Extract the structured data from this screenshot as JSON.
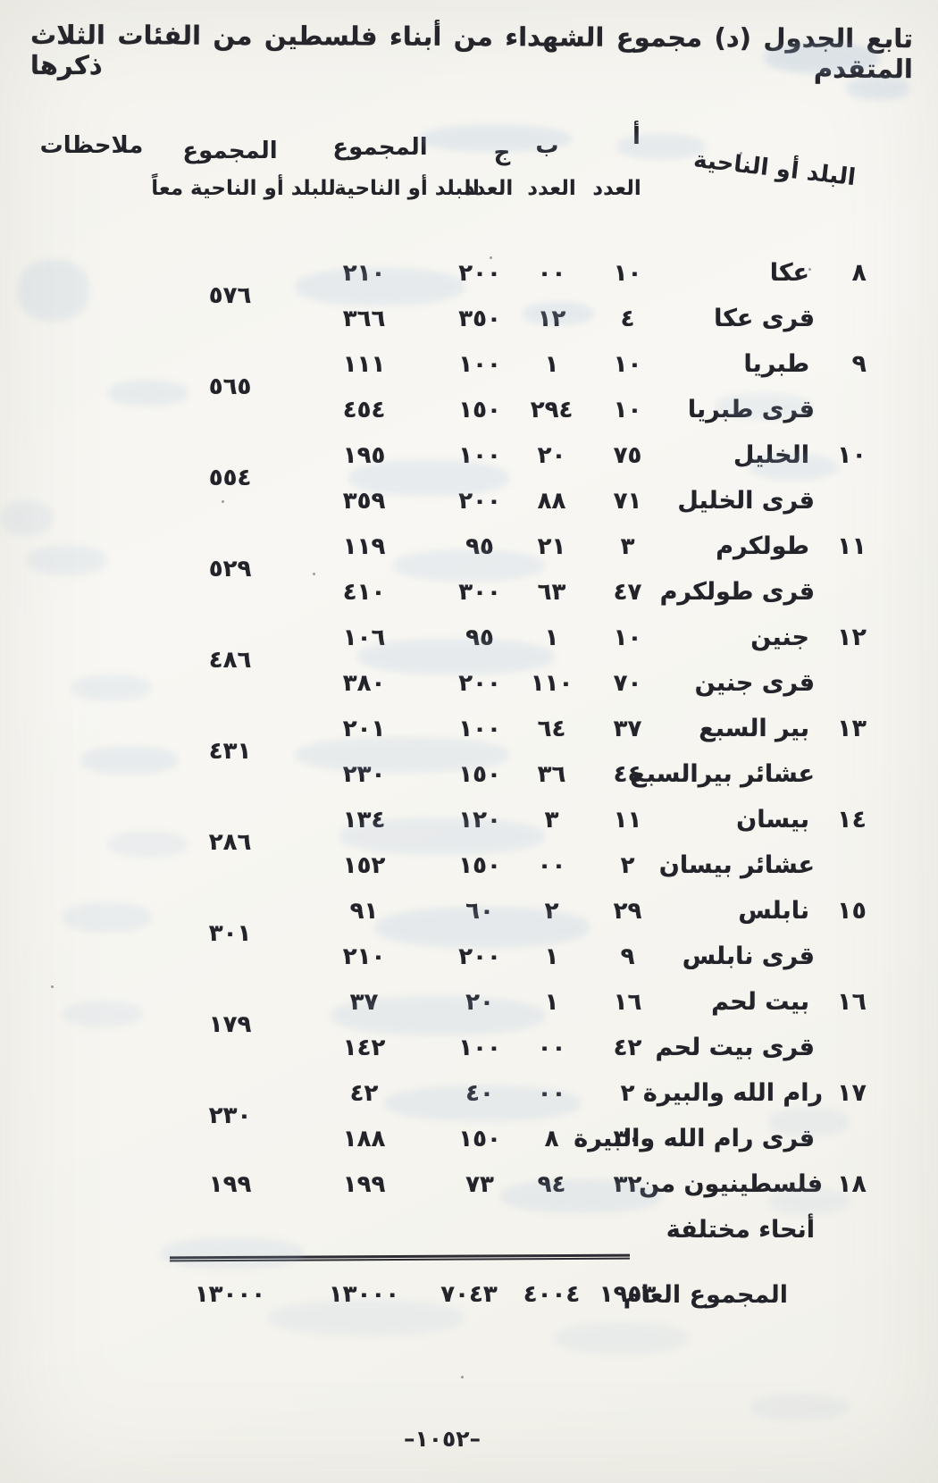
{
  "page": {
    "title": "تابع الجدول (د) مجموع الشهداء من أبناء فلسطين من الفئات الثلاث المتقدم ذكرها",
    "page_number": "–١٠٥٢–"
  },
  "colors": {
    "ink": "#23232a",
    "paper": "#f5f4ef",
    "bleed_through": "#9db8d6"
  },
  "table": {
    "headers": {
      "place": "البلد أو الناحية",
      "col_a": "أ",
      "col_b": "ب",
      "col_c": "ج",
      "count": "العدد",
      "total_place_title": "المجموع",
      "total_place_sub": "للبلد أو الناحية",
      "total_combined_title": "المجموع",
      "total_combined_sub": "للبلد أو الناحية معاً",
      "notes": "ملاحظات"
    },
    "groups": [
      {
        "num": "٨",
        "combined": "٥٧٦",
        "notes": "",
        "rows": [
          {
            "name": "عكا",
            "a": "١٠",
            "b": "٠٠",
            "c": "٢٠٠",
            "t": "٢١٠"
          },
          {
            "name": "قرى عكا",
            "a": "٤",
            "b": "١٢",
            "c": "٣٥٠",
            "t": "٣٦٦"
          }
        ]
      },
      {
        "num": "٩",
        "combined": "٥٦٥",
        "notes": "",
        "rows": [
          {
            "name": "طبريا",
            "a": "١٠",
            "b": "١",
            "c": "١٠٠",
            "t": "١١١"
          },
          {
            "name": "قرى طبريا",
            "a": "١٠",
            "b": "٢٩٤",
            "c": "١٥٠",
            "t": "٤٥٤"
          }
        ]
      },
      {
        "num": "١٠",
        "combined": "٥٥٤",
        "notes": "",
        "rows": [
          {
            "name": "الخليل",
            "a": "٧٥",
            "b": "٢٠",
            "c": "١٠٠",
            "t": "١٩٥"
          },
          {
            "name": "قرى الخليل",
            "a": "٧١",
            "b": "٨٨",
            "c": "٢٠٠",
            "t": "٣٥٩"
          }
        ]
      },
      {
        "num": "١١",
        "combined": "٥٢٩",
        "notes": "",
        "rows": [
          {
            "name": "طولكرم",
            "a": "٣",
            "b": "٢١",
            "c": "٩٥",
            "t": "١١٩"
          },
          {
            "name": "قرى طولكرم",
            "a": "٤٧",
            "b": "٦٣",
            "c": "٣٠٠",
            "t": "٤١٠"
          }
        ]
      },
      {
        "num": "١٢",
        "combined": "٤٨٦",
        "notes": "",
        "rows": [
          {
            "name": "جنين",
            "a": "١٠",
            "b": "١",
            "c": "٩٥",
            "t": "١٠٦"
          },
          {
            "name": "قرى جنين",
            "a": "٧٠",
            "b": "١١٠",
            "c": "٢٠٠",
            "t": "٣٨٠"
          }
        ]
      },
      {
        "num": "١٣",
        "combined": "٤٣١",
        "notes": "",
        "rows": [
          {
            "name": "بير السبع",
            "a": "٣٧",
            "b": "٦٤",
            "c": "١٠٠",
            "t": "٢٠١"
          },
          {
            "name": "عشائر بيرالسبع",
            "a": "٤٤",
            "b": "٣٦",
            "c": "١٥٠",
            "t": "٢٣٠"
          }
        ]
      },
      {
        "num": "١٤",
        "combined": "٢٨٦",
        "notes": "",
        "rows": [
          {
            "name": "بيسان",
            "a": "١١",
            "b": "٣",
            "c": "١٢٠",
            "t": "١٣٤"
          },
          {
            "name": "عشائر بيسان",
            "a": "٢",
            "b": "٠٠",
            "c": "١٥٠",
            "t": "١٥٢"
          }
        ]
      },
      {
        "num": "١٥",
        "combined": "٣٠١",
        "notes": "",
        "rows": [
          {
            "name": "نابلس",
            "a": "٢٩",
            "b": "٢",
            "c": "٦٠",
            "t": "٩١"
          },
          {
            "name": "قرى نابلس",
            "a": "٩",
            "b": "١",
            "c": "٢٠٠",
            "t": "٢١٠"
          }
        ]
      },
      {
        "num": "١٦",
        "combined": "١٧٩",
        "notes": "",
        "rows": [
          {
            "name": "بيت لحم",
            "a": "١٦",
            "b": "١",
            "c": "٢٠",
            "t": "٣٧"
          },
          {
            "name": "قرى بيت لحم",
            "a": "٤٢",
            "b": "٠٠",
            "c": "١٠٠",
            "t": "١٤٢"
          }
        ]
      },
      {
        "num": "١٧",
        "combined": "٢٣٠",
        "notes": "",
        "rows": [
          {
            "name": "رام الله والبيرة",
            "a": "٢",
            "b": "٠٠",
            "c": "٤٠",
            "t": "٤٢"
          },
          {
            "name": "قرى رام الله والبيرة",
            "a": "٣٠",
            "b": "٨",
            "c": "١٥٠",
            "t": "١٨٨"
          }
        ]
      },
      {
        "num": "١٨",
        "combined": "١٩٩",
        "combined_align": "top",
        "notes": "",
        "rows": [
          {
            "name": "فلسطينيون من",
            "a": "٣٢",
            "b": "٩٤",
            "c": "٧٣",
            "t": "١٩٩"
          },
          {
            "name": "أنحاء مختلفة",
            "a": "",
            "b": "",
            "c": "",
            "t": ""
          }
        ]
      }
    ],
    "grand_total": {
      "label": "المجموع العام",
      "a": "١٩٥٣",
      "b": "٤٠٠٤",
      "c": "٧٠٤٣",
      "total_place": "١٣٠٠٠",
      "total_combined": "١٣٠٠٠"
    }
  }
}
